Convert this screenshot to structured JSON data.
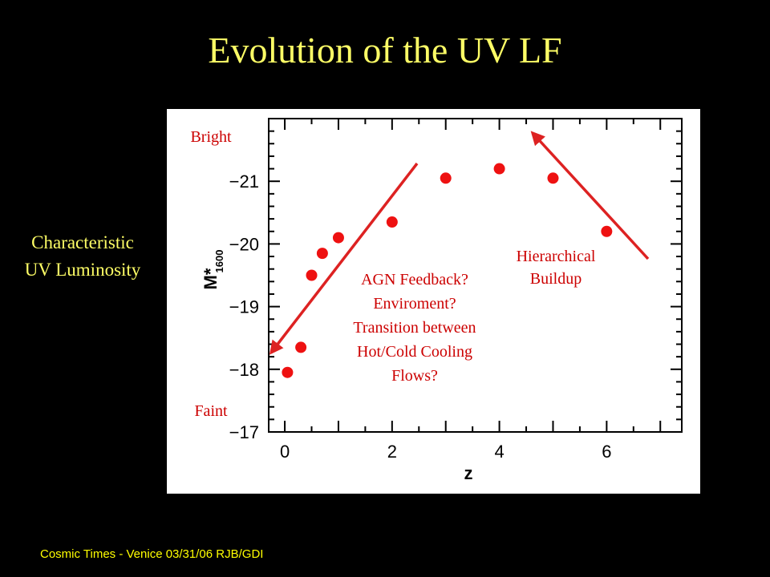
{
  "slide": {
    "title": "Evolution of the UV LF",
    "side_label_line1": "Characteristic",
    "side_label_line2": "UV Luminosity",
    "footer": "Cosmic Times - Venice 03/31/06  RJB/GDI"
  },
  "annotations": {
    "bright": "Bright",
    "faint": "Faint",
    "left_text": [
      "AGN Feedback?",
      "Enviroment?",
      "Transition between",
      "Hot/Cold Cooling",
      "Flows?"
    ],
    "right_text": [
      "Hierarchical",
      "Buildup"
    ]
  },
  "colors": {
    "title": "#ffff66",
    "footer": "#ffff00",
    "points": "#ee1111",
    "arrows": "#dd2222",
    "annotation_text": "#cc0000",
    "background": "#000000",
    "panel": "#ffffff"
  },
  "chart_data": {
    "type": "scatter",
    "xlabel": "z",
    "ylabel": "M*1600",
    "x": [
      0.05,
      0.3,
      0.5,
      0.7,
      1.0,
      2.0,
      3.0,
      4.0,
      5.0,
      6.0
    ],
    "y": [
      -17.95,
      -18.35,
      -19.5,
      -19.85,
      -20.1,
      -20.35,
      -21.05,
      -21.2,
      -21.05,
      -20.2
    ],
    "xlim": [
      -0.3,
      7.4
    ],
    "ylim": [
      -17,
      -22
    ],
    "xticks": [
      0,
      2,
      4,
      6
    ],
    "yticks": [
      -17,
      -18,
      -19,
      -20,
      -21
    ],
    "grid": false,
    "legend": "none"
  }
}
